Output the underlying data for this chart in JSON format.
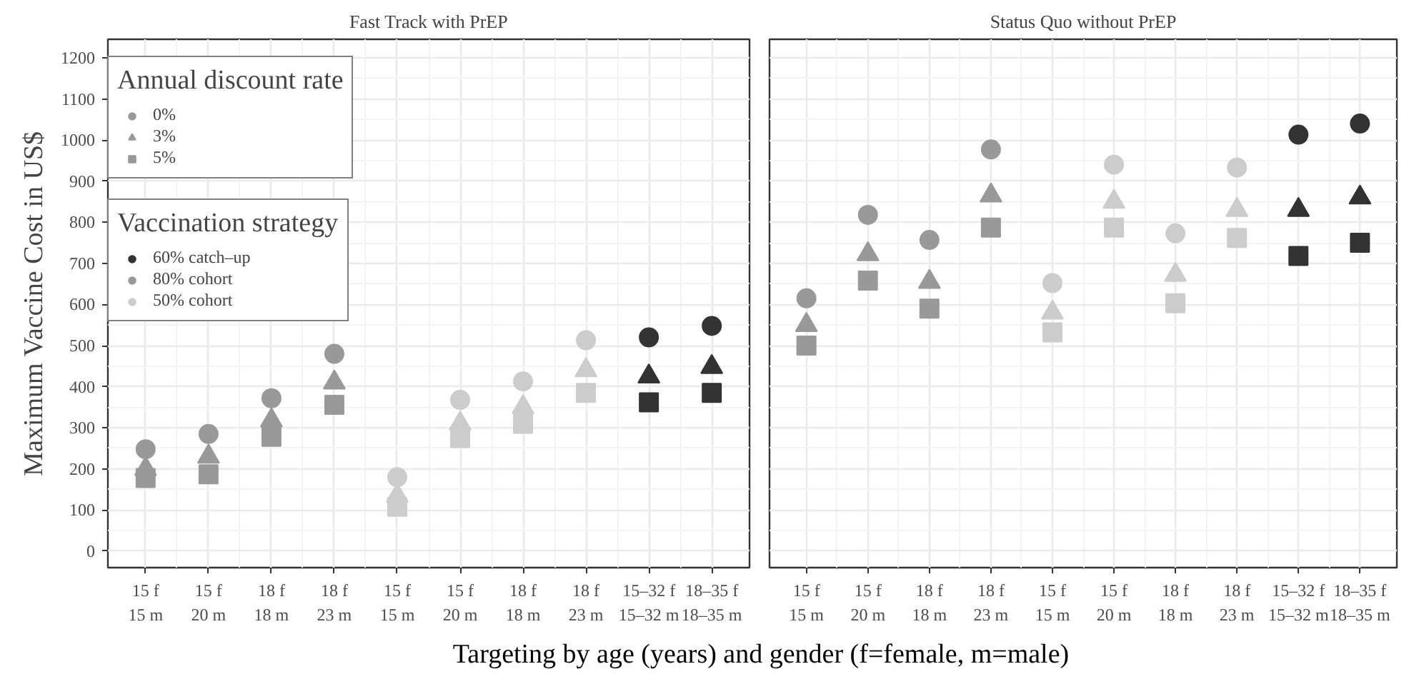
{
  "chart_data": [
    {
      "type": "scatter",
      "title": "Fast Track with PrEP",
      "ylabel": "Maximum Vaccine Cost in US$",
      "xlabel": "Targeting by age (years) and gender (f=female, m=male)",
      "categories": [
        "15 f\n15 m",
        "15 f\n20 m",
        "18 f\n18 m",
        "18 f\n23 m",
        "15 f\n15 m",
        "15 f\n20 m",
        "18 f\n18 m",
        "18 f\n23 m",
        "15–32 f\n15–32 m",
        "18–35 f\n18–35 m"
      ],
      "ylim": [
        -40,
        1245
      ],
      "yticks": [
        0,
        100,
        200,
        300,
        400,
        500,
        600,
        700,
        800,
        900,
        1000,
        1100,
        1200
      ],
      "grid": true,
      "legend": "top left",
      "legend_title": [
        "Annual discount rate",
        "Vaccination strategy"
      ],
      "series": [
        {
          "name": "0%",
          "marker": "circle",
          "colors": [
            "#999999",
            "#999999",
            "#999999",
            "#999999",
            "#cccccc",
            "#cccccc",
            "#cccccc",
            "#cccccc",
            "#333333",
            "#333333"
          ],
          "values": [
            248,
            285,
            372,
            480,
            180,
            368,
            413,
            513,
            520,
            548
          ]
        },
        {
          "name": "3%",
          "marker": "triangle",
          "colors": [
            "#999999",
            "#999999",
            "#999999",
            "#999999",
            "#cccccc",
            "#cccccc",
            "#cccccc",
            "#cccccc",
            "#333333",
            "#333333"
          ],
          "values": [
            200,
            230,
            318,
            410,
            135,
            310,
            350,
            440,
            425,
            448
          ]
        },
        {
          "name": "5%",
          "marker": "square",
          "colors": [
            "#999999",
            "#999999",
            "#999999",
            "#999999",
            "#cccccc",
            "#cccccc",
            "#cccccc",
            "#cccccc",
            "#333333",
            "#333333"
          ],
          "values": [
            178,
            187,
            278,
            356,
            108,
            275,
            310,
            385,
            362,
            385
          ]
        },
        {
          "name": "60% catch–up",
          "marker": "circle",
          "color": "#333333",
          "values": [
            null,
            null,
            null,
            null,
            null,
            null,
            null,
            null,
            null,
            null
          ]
        },
        {
          "name": "80% cohort",
          "marker": "circle",
          "color": "#999999",
          "values": [
            null,
            null,
            null,
            null,
            null,
            null,
            null,
            null,
            null,
            null
          ]
        },
        {
          "name": "50% cohort",
          "marker": "circle",
          "color": "#cccccc",
          "values": [
            null,
            null,
            null,
            null,
            null,
            null,
            null,
            null,
            null,
            null
          ]
        }
      ]
    },
    {
      "type": "scatter",
      "title": "Status Quo without PrEP",
      "tick_labels": "x",
      "categories": [
        "15 f\n15 m",
        "15 f\n20 m",
        "18 f\n18 m",
        "18 f\n23 m",
        "15 f\n15 m",
        "15 f\n20 m",
        "18 f\n18 m",
        "18 f\n23 m",
        "15–32 f\n15–32 m",
        "18–35 f\n18–35 m"
      ],
      "ylim": [
        -40,
        1245
      ],
      "yticks": [
        0,
        100,
        200,
        300,
        400,
        500,
        600,
        700,
        800,
        900,
        1000,
        1100,
        1200
      ],
      "grid": true,
      "series": [
        {
          "marker": "circle",
          "colors": [
            "#999999",
            "#999999",
            "#999999",
            "#999999",
            "#cccccc",
            "#cccccc",
            "#cccccc",
            "#cccccc",
            "#333333",
            "#333333"
          ],
          "values": [
            615,
            818,
            757,
            977,
            652,
            940,
            773,
            933,
            1013,
            1040
          ]
        },
        {
          "marker": "triangle",
          "colors": [
            "#999999",
            "#999999",
            "#999999",
            "#999999",
            "#cccccc",
            "#cccccc",
            "#cccccc",
            "#cccccc",
            "#333333",
            "#333333"
          ],
          "values": [
            550,
            722,
            655,
            865,
            580,
            850,
            672,
            830,
            830,
            860
          ]
        },
        {
          "marker": "square",
          "colors": [
            "#999999",
            "#999999",
            "#999999",
            "#999999",
            "#cccccc",
            "#cccccc",
            "#cccccc",
            "#cccccc",
            "#333333",
            "#333333"
          ],
          "values": [
            500,
            658,
            590,
            787,
            532,
            787,
            603,
            762,
            718,
            750
          ]
        }
      ]
    }
  ]
}
